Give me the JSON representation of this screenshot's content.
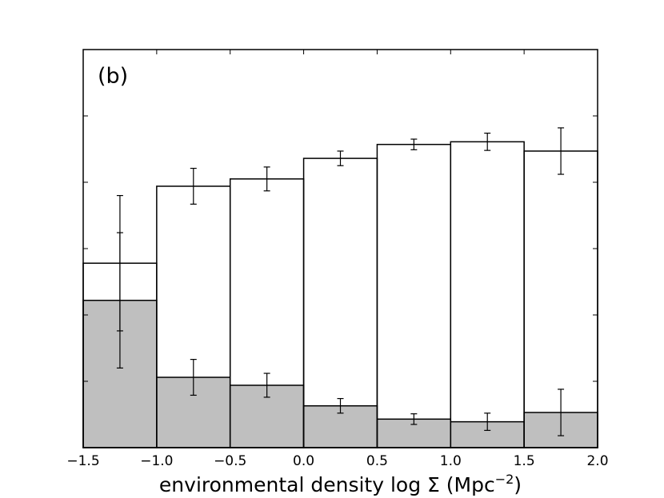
{
  "chart_data": {
    "type": "bar",
    "panel_label": "(b)",
    "xlabel": "environmental density log Σ (Mpc",
    "xlabel_exponent": "−2",
    "xlabel_suffix": ")",
    "ylabel": "",
    "xlim": [
      -1.5,
      2.0
    ],
    "ylim": [
      0,
      6
    ],
    "x_ticks": [
      -1.5,
      -1.0,
      -0.5,
      0.0,
      0.5,
      1.0,
      1.5,
      2.0
    ],
    "x_tick_labels": [
      "−1.5",
      "−1.0",
      "−0.5",
      "0.0",
      "0.5",
      "1.0",
      "1.5",
      "2.0"
    ],
    "y_ticks": [
      1,
      2,
      3,
      4,
      5
    ],
    "y_tick_labels_shown": false,
    "grid": false,
    "bin_edges": [
      -1.5,
      -1.0,
      -0.5,
      0.0,
      0.5,
      1.0,
      1.5,
      2.0
    ],
    "series": [
      {
        "values": [
          2.78,
          3.94,
          4.05,
          4.36,
          4.57,
          4.61,
          4.47
        ],
        "errors": [
          1.02,
          0.27,
          0.18,
          0.11,
          0.08,
          0.13,
          0.35
        ],
        "style": "open-step"
      },
      {
        "values": [
          2.22,
          1.06,
          0.94,
          0.63,
          0.43,
          0.39,
          0.53
        ],
        "errors": [
          1.02,
          0.27,
          0.18,
          0.11,
          0.08,
          0.13,
          0.35
        ],
        "style": "filled",
        "color": "#bfbfbf"
      }
    ]
  }
}
